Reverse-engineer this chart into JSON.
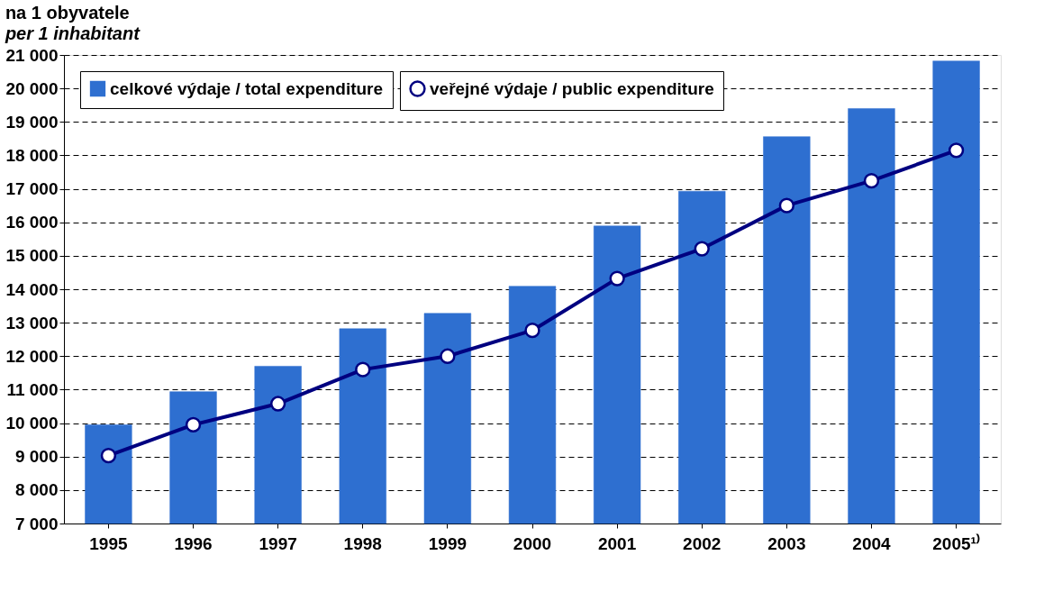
{
  "chart_data": {
    "type": "bar",
    "title": "na 1 obyvatele",
    "subtitle": "per 1 inhabitant",
    "categories": [
      "1995",
      "1996",
      "1997",
      "1998",
      "1999",
      "2000",
      "2001",
      "2002",
      "2003",
      "2004",
      "2005¹⁾"
    ],
    "series": [
      {
        "name": "celkové výdaje / total expenditure",
        "type": "bar",
        "color": "#2e6fd0",
        "values": [
          9950,
          10940,
          11700,
          12820,
          13280,
          14090,
          15890,
          16930,
          18560,
          19400,
          20820
        ]
      },
      {
        "name": "veřejné výdaje / public expenditure",
        "type": "line",
        "color": "#000080",
        "marker": "circle",
        "values": [
          9030,
          9950,
          10580,
          11600,
          12000,
          12770,
          14320,
          15210,
          16500,
          17240,
          18150
        ]
      }
    ],
    "ylim": [
      7000,
      21000
    ],
    "yticks": [
      {
        "value": 7000,
        "label": "7 000"
      },
      {
        "value": 8000,
        "label": "8 000"
      },
      {
        "value": 9000,
        "label": "9 000"
      },
      {
        "value": 10000,
        "label": "10 000"
      },
      {
        "value": 11000,
        "label": "11 000"
      },
      {
        "value": 12000,
        "label": "12 000"
      },
      {
        "value": 13000,
        "label": "13 000"
      },
      {
        "value": 14000,
        "label": "14 000"
      },
      {
        "value": 15000,
        "label": "15 000"
      },
      {
        "value": 16000,
        "label": "16 000"
      },
      {
        "value": 17000,
        "label": "17 000"
      },
      {
        "value": 18000,
        "label": "18 000"
      },
      {
        "value": 19000,
        "label": "19 000"
      },
      {
        "value": 20000,
        "label": "20 000"
      },
      {
        "value": 21000,
        "label": "21 000"
      }
    ],
    "grid": "y",
    "legend": "top left"
  }
}
